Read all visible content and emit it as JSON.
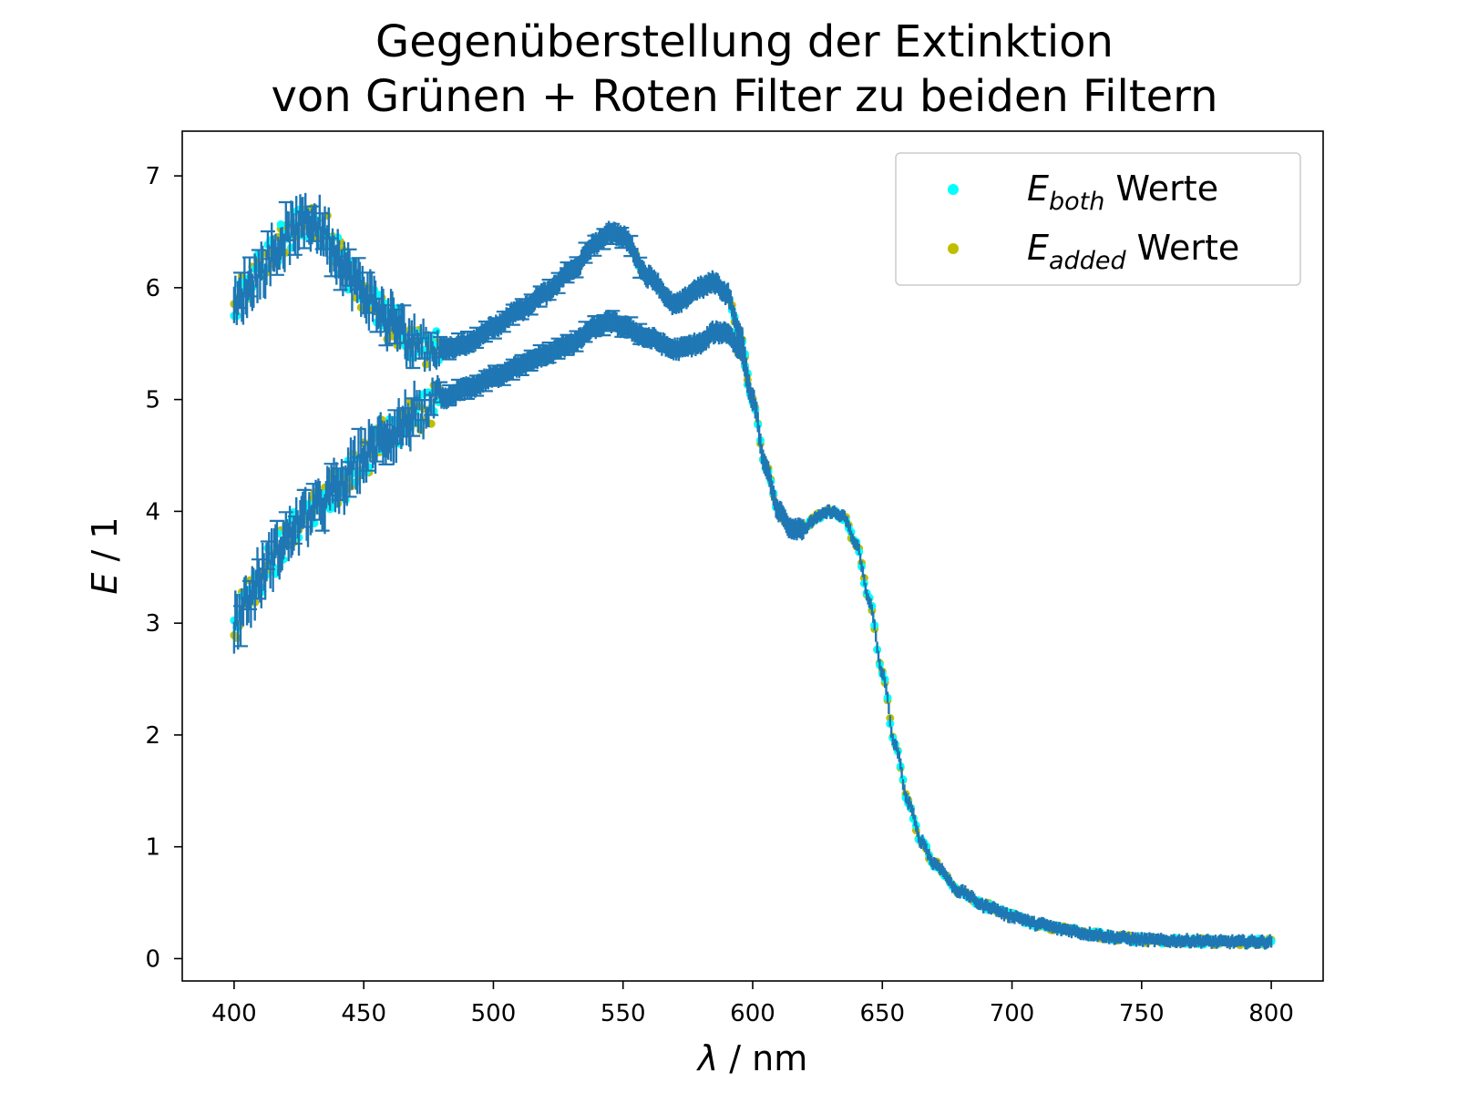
{
  "chart_data": {
    "type": "scatter",
    "title_line1": "Gegenüberstellung der Extinktion",
    "title_line2": "von Grünen + Roten Filter zu beiden Filtern",
    "xlabel_symbol": "λ",
    "xlabel_unit": " / nm",
    "ylabel_symbol": "E",
    "ylabel_unit": " / 1",
    "xlim": [
      380,
      820
    ],
    "ylim": [
      -0.2,
      7.4
    ],
    "xticks": [
      400,
      450,
      500,
      550,
      600,
      650,
      700,
      750,
      800
    ],
    "yticks": [
      0,
      1,
      2,
      3,
      4,
      5,
      6,
      7
    ],
    "grid": false,
    "legend_position": "top-right",
    "legend": [
      {
        "symbol": "E",
        "subscript": "both",
        "suffix": " Werte",
        "color": "#00ffff"
      },
      {
        "symbol": "E",
        "subscript": "added",
        "suffix": " Werte",
        "color": "#bfbf00"
      }
    ],
    "errorbar_color": "#1f77b4",
    "series": [
      {
        "name": "E_both Werte",
        "color": "#00ffff",
        "branches": [
          {
            "x": [
              400,
              405,
              410,
              415,
              420,
              425,
              430,
              435,
              440,
              445,
              450,
              460,
              470,
              480,
              490,
              500,
              510,
              520,
              530,
              540,
              545,
              550,
              560,
              570,
              580,
              585,
              590,
              595,
              600,
              605,
              610,
              615,
              620,
              625,
              630,
              635,
              640,
              645,
              650,
              655,
              660,
              665,
              670,
              680,
              690,
              700,
              710,
              720,
              730,
              740,
              750,
              760,
              770,
              780,
              790,
              800
            ],
            "y": [
              5.8,
              6.0,
              6.15,
              6.3,
              6.45,
              6.55,
              6.6,
              6.5,
              6.3,
              6.1,
              5.95,
              5.7,
              5.5,
              5.45,
              5.5,
              5.65,
              5.8,
              5.95,
              6.15,
              6.4,
              6.5,
              6.45,
              6.1,
              5.85,
              6.0,
              6.05,
              5.95,
              5.6,
              5.0,
              4.4,
              4.0,
              3.85,
              3.85,
              3.95,
              4.0,
              3.95,
              3.7,
              3.2,
              2.55,
              1.9,
              1.4,
              1.05,
              0.85,
              0.6,
              0.47,
              0.38,
              0.31,
              0.26,
              0.22,
              0.19,
              0.17,
              0.16,
              0.16,
              0.15,
              0.15,
              0.15
            ]
          },
          {
            "x": [
              400,
              405,
              410,
              415,
              420,
              425,
              430,
              440,
              450,
              460,
              470,
              480,
              490,
              500,
              510,
              520,
              530,
              540,
              545,
              550,
              560,
              570,
              580,
              585,
              590,
              595,
              600
            ],
            "y": [
              3.0,
              3.2,
              3.4,
              3.6,
              3.75,
              3.9,
              4.0,
              4.2,
              4.5,
              4.7,
              4.85,
              5.0,
              5.1,
              5.2,
              5.3,
              5.4,
              5.5,
              5.65,
              5.7,
              5.65,
              5.55,
              5.45,
              5.5,
              5.6,
              5.6,
              5.45,
              5.0
            ]
          }
        ]
      },
      {
        "name": "E_added Werte",
        "color": "#bfbf00",
        "branches": [
          {
            "x": [
              400,
              405,
              410,
              415,
              420,
              425,
              430,
              435,
              440,
              445,
              450,
              460,
              470,
              480,
              490,
              500,
              510,
              520,
              530,
              540,
              545,
              550,
              560,
              570,
              580,
              585,
              590,
              595,
              600,
              605,
              610,
              615,
              620,
              625,
              630,
              635,
              640,
              645,
              650,
              655,
              660,
              665,
              670,
              680,
              690,
              700,
              710,
              720,
              730,
              740,
              750,
              760,
              770,
              780,
              790,
              800
            ],
            "y": [
              5.8,
              6.0,
              6.15,
              6.3,
              6.45,
              6.55,
              6.6,
              6.5,
              6.3,
              6.1,
              5.95,
              5.7,
              5.5,
              5.45,
              5.5,
              5.65,
              5.8,
              5.95,
              6.15,
              6.4,
              6.5,
              6.45,
              6.1,
              5.85,
              6.0,
              6.05,
              5.95,
              5.6,
              5.0,
              4.4,
              4.0,
              3.85,
              3.85,
              3.95,
              4.0,
              3.95,
              3.7,
              3.2,
              2.55,
              1.9,
              1.4,
              1.05,
              0.85,
              0.6,
              0.47,
              0.38,
              0.31,
              0.26,
              0.22,
              0.19,
              0.17,
              0.16,
              0.16,
              0.15,
              0.15,
              0.15
            ]
          },
          {
            "x": [
              400,
              405,
              410,
              415,
              420,
              425,
              430,
              440,
              450,
              460,
              470,
              480,
              490,
              500,
              510,
              520,
              530,
              540,
              545,
              550,
              560,
              570,
              580,
              585,
              590,
              595,
              600
            ],
            "y": [
              3.0,
              3.2,
              3.4,
              3.6,
              3.75,
              3.9,
              4.0,
              4.2,
              4.5,
              4.7,
              4.85,
              5.0,
              5.1,
              5.2,
              5.3,
              5.4,
              5.5,
              5.65,
              5.7,
              5.65,
              5.55,
              5.45,
              5.5,
              5.6,
              5.6,
              5.45,
              5.0
            ]
          }
        ]
      }
    ]
  }
}
